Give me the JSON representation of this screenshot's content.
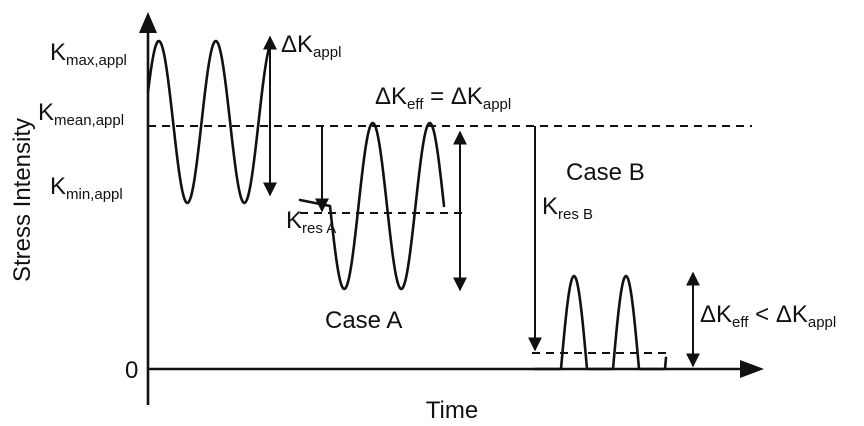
{
  "axes": {
    "y_label": "Stress Intensity",
    "x_label": "Time",
    "zero_label": "0"
  },
  "labels": {
    "kmax": {
      "main": "K",
      "sub": "max,appl"
    },
    "kmean": {
      "main": "K",
      "sub": "mean,appl"
    },
    "kmin": {
      "main": "K",
      "sub": "min,appl"
    },
    "delta_k_appl": {
      "main": "ΔK",
      "sub": "appl"
    },
    "keff_eq": {
      "lhs_main": "ΔK",
      "lhs_sub": "eff",
      "op": " = ",
      "rhs_main": "ΔK",
      "rhs_sub": "appl"
    },
    "kres_a": {
      "main": "K",
      "sub": "res A"
    },
    "kres_b": {
      "main": "K",
      "sub": "res B"
    },
    "keff_lt": {
      "lhs_main": "ΔK",
      "lhs_sub": "eff",
      "op": " < ",
      "rhs_main": "ΔK",
      "rhs_sub": "appl"
    }
  },
  "cases": {
    "case_a": "Case A",
    "case_b": "Case B"
  }
}
